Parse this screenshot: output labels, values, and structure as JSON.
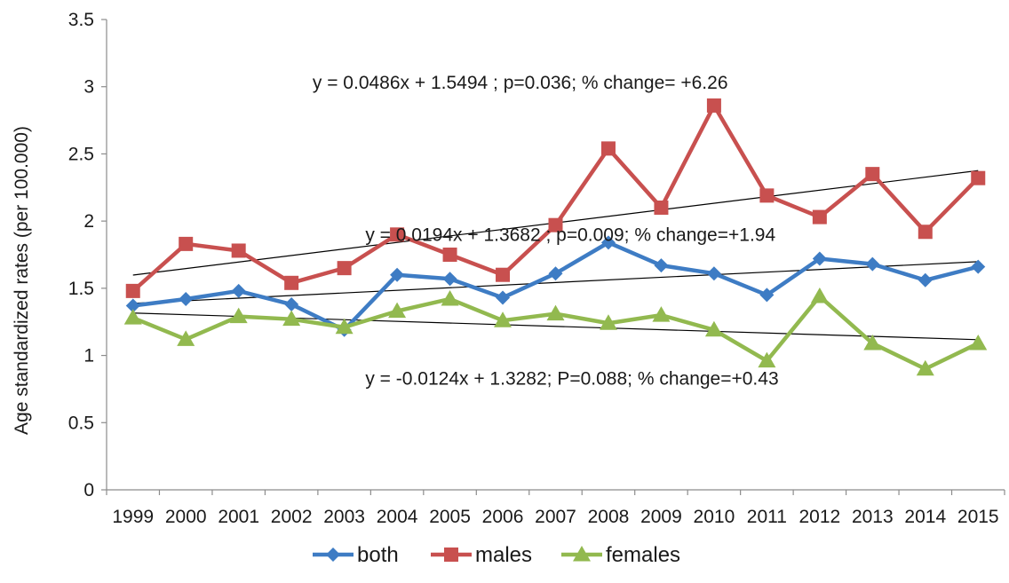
{
  "chart_data": {
    "type": "line",
    "title": "",
    "xlabel": "",
    "ylabel": "Age standardized rates (per 100.000)",
    "ylim": [
      0,
      3.5
    ],
    "yticks": [
      "0",
      "0.5",
      "1",
      "1.5",
      "2",
      "2.5",
      "3",
      "3.5"
    ],
    "categories": [
      "1999",
      "2000",
      "2001",
      "2002",
      "2003",
      "2004",
      "2005",
      "2006",
      "2007",
      "2008",
      "2009",
      "2010",
      "2011",
      "2012",
      "2013",
      "2014",
      "2015"
    ],
    "grid": false,
    "legend": "bottom",
    "series": [
      {
        "name": "both",
        "color": "#3e7cc4",
        "marker": "diamond",
        "values": [
          1.37,
          1.42,
          1.48,
          1.38,
          1.19,
          1.6,
          1.57,
          1.43,
          1.61,
          1.84,
          1.67,
          1.61,
          1.45,
          1.72,
          1.68,
          1.56,
          1.66
        ]
      },
      {
        "name": "males",
        "color": "#c8504f",
        "marker": "square",
        "values": [
          1.48,
          1.83,
          1.78,
          1.54,
          1.65,
          1.9,
          1.75,
          1.6,
          1.97,
          2.54,
          2.1,
          2.86,
          2.19,
          2.03,
          2.35,
          1.92,
          2.32
        ]
      },
      {
        "name": "females",
        "color": "#92b94f",
        "marker": "triangle",
        "values": [
          1.28,
          1.12,
          1.29,
          1.27,
          1.21,
          1.33,
          1.42,
          1.26,
          1.31,
          1.24,
          1.3,
          1.19,
          0.96,
          1.44,
          1.09,
          0.9,
          1.09
        ]
      }
    ],
    "trendlines": [
      {
        "series": "males",
        "slope": 0.0486,
        "intercept": 1.5494,
        "color": "#000000"
      },
      {
        "series": "both",
        "slope": 0.0194,
        "intercept": 1.3682,
        "color": "#000000"
      },
      {
        "series": "females",
        "slope": -0.0124,
        "intercept": 1.3282,
        "color": "#000000"
      }
    ],
    "annotations": [
      {
        "text": "y = 0.0486x + 1.5494 ; p=0.036;  % change= +6.26",
        "x_category": "2003",
        "y": 3.03
      },
      {
        "text": "y = 0.0194x + 1.3682 ; p=0.009; % change=+1.94",
        "x_category": "2004",
        "y": 1.9
      },
      {
        "text": "y = -0.0124x + 1.3282; P=0.088; % change=+0.43",
        "x_category": "2004",
        "y": 0.83
      }
    ]
  }
}
